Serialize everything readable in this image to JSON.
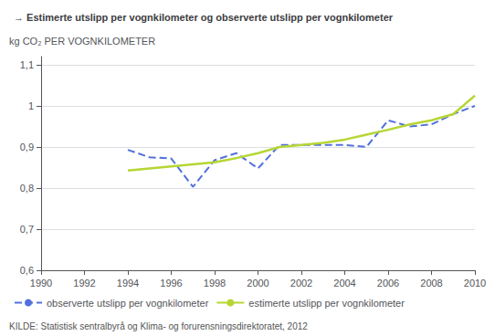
{
  "chart_data": {
    "type": "line",
    "title": "→ Estimerte utslipp per vognkilometer og observerte utslipp per vognkilometer",
    "ylabel": "kg CO₂ PER VOGNKILOMETER",
    "annotations": [
      "KILDE: Statistisk sentralbyrå og Klima- og forurensningsdirektoratet, 2012"
    ],
    "x": [
      1994,
      1995,
      1996,
      1997,
      1998,
      1999,
      2000,
      2001,
      2002,
      2003,
      2004,
      2005,
      2006,
      2007,
      2008,
      2009,
      2010
    ],
    "series": [
      {
        "name": "observerte utslipp per vognkilometer",
        "line_style": "dashed",
        "values": [
          0.893,
          0.875,
          0.872,
          0.803,
          0.868,
          0.885,
          0.848,
          0.905,
          0.905,
          0.905,
          0.905,
          0.9,
          0.965,
          0.95,
          0.955,
          0.98,
          1.0
        ]
      },
      {
        "name": "estimerte utslipp per vognkilometer",
        "line_style": "solid",
        "values": [
          0.843,
          0.848,
          0.853,
          0.858,
          0.863,
          0.873,
          0.885,
          0.9,
          0.905,
          0.91,
          0.918,
          0.93,
          0.942,
          0.955,
          0.965,
          0.98,
          1.025
        ]
      }
    ],
    "xlim": [
      1990,
      2010
    ],
    "xticks": [
      1990,
      1992,
      1994,
      1996,
      1998,
      2000,
      2002,
      2004,
      2006,
      2008,
      2010
    ],
    "ylim": [
      0.6,
      1.12
    ],
    "yticks": [
      {
        "value": 0.6,
        "label": "0,6"
      },
      {
        "value": 0.7,
        "label": "0,7"
      },
      {
        "value": 0.8,
        "label": "0,8"
      },
      {
        "value": 0.9,
        "label": "0,9"
      },
      1,
      {
        "value": 1.1,
        "label": "1,1"
      }
    ],
    "grid": true,
    "legend": "lower left"
  }
}
